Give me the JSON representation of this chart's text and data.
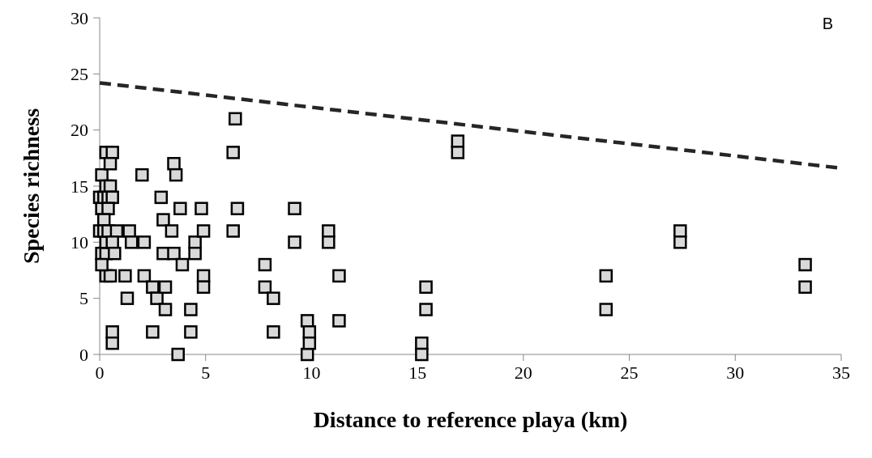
{
  "chart_data": {
    "type": "scatter",
    "xlabel": "Distance to reference playa (km)",
    "ylabel": "Species richness",
    "annotations": [
      "B"
    ],
    "marker": "square",
    "grid": false,
    "legend": false,
    "xlim": [
      0,
      35
    ],
    "xticks": [
      0,
      5,
      10,
      15,
      20,
      25,
      30,
      35
    ],
    "ylim": [
      0,
      30
    ],
    "yticks": [
      0,
      5,
      10,
      15,
      20,
      25,
      30
    ],
    "series": [
      {
        "color": "#d9d9d9",
        "x": [
          0.1,
          0.3,
          0.6,
          0.5,
          0,
          0.1,
          0.2,
          0.3,
          0.5,
          0.4,
          0.6,
          0.4,
          0,
          0.2,
          0.1,
          0.3,
          0.3,
          0.2,
          0.4,
          0.8,
          0.6,
          0.7,
          0.3,
          0.5,
          0.1,
          0.6,
          0.6,
          1.2,
          1.3,
          1.4,
          1.5,
          2.0,
          2.1,
          2.1,
          2.5,
          2.5,
          2.7,
          2.9,
          3.0,
          3.0,
          3.1,
          3.1,
          3.4,
          3.5,
          3.5,
          3.6,
          3.7,
          3.8,
          3.9,
          4.3,
          4.3,
          4.5,
          4.5,
          4.8,
          4.9,
          4.9,
          4.9,
          6.3,
          6.4,
          6.3,
          6.5,
          7.8,
          7.8,
          8.2,
          8.2,
          9.2,
          9.2,
          9.8,
          9.8,
          9.9,
          9.9,
          10.8,
          10.8,
          11.3,
          11.3,
          15.2,
          15.2,
          15.4,
          15.4,
          16.9,
          16.9,
          23.9,
          23.9,
          27.4,
          27.4,
          33.3,
          33.3
        ],
        "values": [
          16,
          18,
          18,
          17,
          14,
          13,
          14,
          15,
          15,
          14,
          14,
          13,
          11,
          12,
          9,
          9,
          10,
          11,
          11,
          11,
          10,
          9,
          7,
          7,
          8,
          2,
          1,
          7,
          5,
          11,
          10,
          16,
          10,
          7,
          6,
          2,
          5,
          14,
          12,
          9,
          6,
          4,
          11,
          9,
          17,
          16,
          0,
          13,
          8,
          4,
          2,
          10,
          9,
          13,
          11,
          7,
          6,
          18,
          21,
          11,
          13,
          8,
          6,
          5,
          2,
          13,
          10,
          3,
          0,
          2,
          1,
          11,
          10,
          7,
          3,
          1,
          0,
          6,
          4,
          19,
          18,
          7,
          4,
          11,
          10,
          8,
          6
        ]
      },
      {
        "type": "line",
        "marker": "none",
        "line_style": "dashed",
        "color": "#262626",
        "x": [
          0,
          35
        ],
        "values": [
          24.2,
          16.6
        ]
      }
    ]
  }
}
